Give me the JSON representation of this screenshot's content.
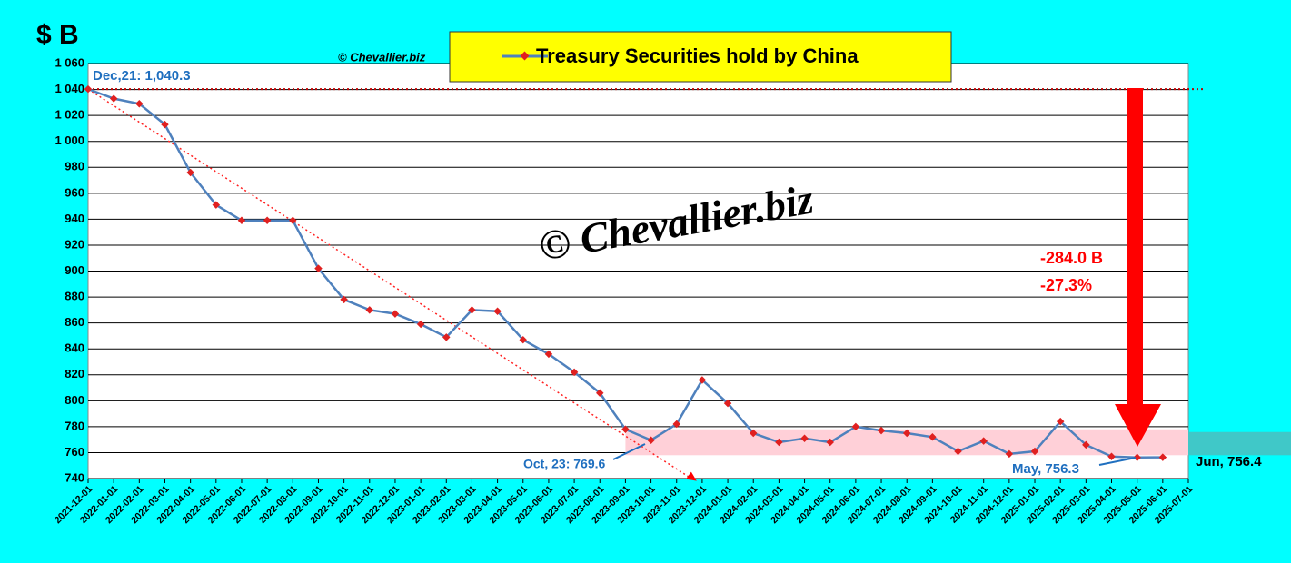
{
  "chart_data": {
    "type": "line",
    "title": "Treasury Securities hold by China",
    "y_label": "$ B",
    "source": "© Chevallier.biz",
    "watermark": "© Chevallier.biz",
    "annotations": [
      "Dec,21: 1,040.3",
      "Oct, 23: 769.6",
      "May, 756.3",
      "Jun, 756.4",
      "-284.0 B",
      "-27.3%"
    ],
    "categories": [
      "2021-12-01",
      "2022-01-01",
      "2022-02-01",
      "2022-03-01",
      "2022-04-01",
      "2022-05-01",
      "2022-06-01",
      "2022-07-01",
      "2022-08-01",
      "2022-09-01",
      "2022-10-01",
      "2022-11-01",
      "2022-12-01",
      "2023-01-01",
      "2023-02-01",
      "2023-03-01",
      "2023-04-01",
      "2023-05-01",
      "2023-06-01",
      "2023-07-01",
      "2023-08-01",
      "2023-09-01",
      "2023-10-01",
      "2023-11-01",
      "2023-12-01",
      "2024-01-01",
      "2024-02-01",
      "2024-03-01",
      "2024-04-01",
      "2024-05-01",
      "2024-06-01",
      "2024-07-01",
      "2024-08-01",
      "2024-09-01",
      "2024-10-01",
      "2024-11-01",
      "2024-12-01",
      "2025-01-01",
      "2025-02-01",
      "2025-03-01",
      "2025-04-01",
      "2025-05-01",
      "2025-06-01",
      "2025-07-01"
    ],
    "series": [
      {
        "name": "Treasury Securities hold by China",
        "color": "#4f81bd",
        "marker_color": "#e02020",
        "values": [
          1040.3,
          1033,
          1029,
          1013,
          976,
          951,
          939,
          939,
          939,
          902,
          878,
          870,
          867,
          859,
          849,
          870,
          869,
          847,
          836,
          822,
          806,
          778,
          769.6,
          782,
          816,
          798,
          775,
          768,
          771,
          768,
          780,
          777,
          775,
          772,
          761,
          769,
          759,
          761,
          784,
          766,
          757,
          756.3,
          756.4,
          null
        ]
      }
    ],
    "ylim": [
      740,
      1060
    ],
    "yticks": [
      740,
      760,
      780,
      800,
      820,
      840,
      860,
      880,
      900,
      920,
      940,
      960,
      980,
      {
        "value": 1000,
        "label": "1 000"
      },
      {
        "value": 1020,
        "label": "1 020"
      },
      {
        "value": 1040,
        "label": "1 040"
      },
      {
        "value": 1060,
        "label": "1 060"
      }
    ],
    "grid": true
  }
}
